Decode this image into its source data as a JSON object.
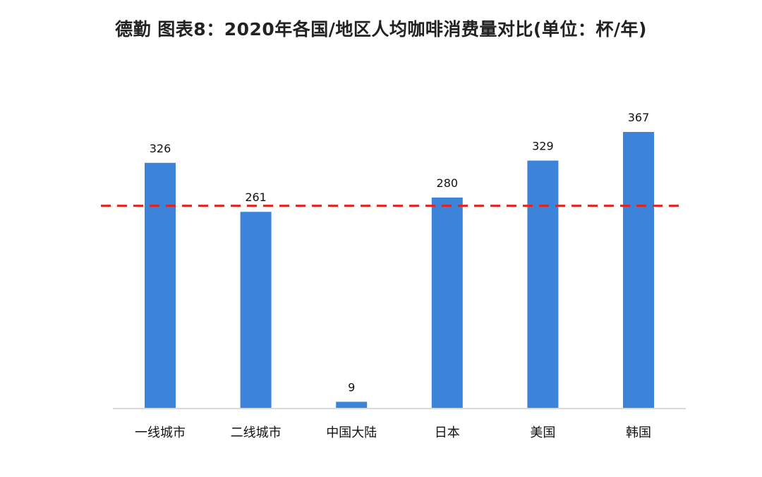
{
  "title": "德勤 图表8：2020年各国/地区人均咖啡消费量对比(单位：杯/年)",
  "colors": {
    "bar": "#3B84DA",
    "reference_line": "#E8221B",
    "axis": "#D9D9D9",
    "text": "#111111"
  },
  "chart_data": {
    "type": "bar",
    "title": "德勤 图表8：2020年各国/地区人均咖啡消费量对比(单位：杯/年)",
    "xlabel": "",
    "ylabel": "",
    "categories": [
      "一线城市",
      "二线城市",
      "中国大陆",
      "日本",
      "美国",
      "韩国"
    ],
    "values": [
      326,
      261,
      9,
      280,
      329,
      367
    ],
    "data_labels": [
      "326",
      "261",
      "9",
      "280",
      "329",
      "367"
    ],
    "ylim": [
      0,
      367
    ],
    "reference_line": {
      "style": "dashed",
      "value": 269
    },
    "grid": false,
    "legend": "none"
  }
}
